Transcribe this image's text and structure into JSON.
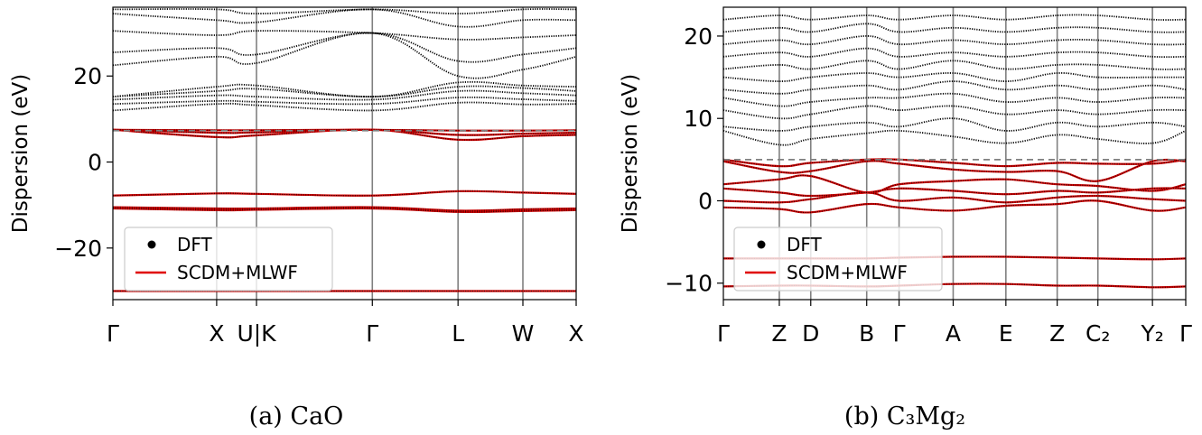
{
  "chart_data": [
    {
      "type": "line",
      "ylabel": "Dispersion (eV)",
      "ylim": [
        -32,
        36
      ],
      "yticks": [
        -20,
        0,
        20
      ],
      "ytick_labels": [
        "−20",
        "0",
        "20"
      ],
      "kpath": [
        "Γ",
        "X",
        "U|K",
        "Γ",
        "L",
        "W",
        "X"
      ],
      "kpos": [
        0,
        0.224,
        0.31,
        0.56,
        0.745,
        0.885,
        1.0
      ],
      "fermi_level": 7.3,
      "legend": [
        "DFT",
        "SCDM+MLWF"
      ],
      "legend_position": "lower-left",
      "caption": "(a) CaO",
      "wannier_bands": [
        {
          "x": [
            0,
            0.224,
            0.31,
            0.56,
            0.745,
            0.885,
            1.0
          ],
          "y": [
            7.5,
            5.8,
            6.2,
            7.5,
            5.2,
            6.0,
            6.3
          ]
        },
        {
          "x": [
            0,
            0.224,
            0.31,
            0.56,
            0.745,
            0.885,
            1.0
          ],
          "y": [
            7.5,
            6.8,
            6.9,
            7.5,
            6.3,
            6.6,
            6.8
          ]
        },
        {
          "x": [
            0,
            0.224,
            0.31,
            0.56,
            0.745,
            0.885,
            1.0
          ],
          "y": [
            7.5,
            7.4,
            7.4,
            7.5,
            7.3,
            7.3,
            7.4
          ]
        },
        {
          "x": [
            0,
            0.224,
            0.31,
            0.56,
            0.745,
            0.885,
            1.0
          ],
          "y": [
            -7.8,
            -7.3,
            -7.4,
            -7.8,
            -6.8,
            -7.1,
            -7.4
          ]
        },
        {
          "x": [
            0,
            0.224,
            0.31,
            0.56,
            0.745,
            0.885,
            1.0
          ],
          "y": [
            -10.5,
            -10.8,
            -10.8,
            -10.5,
            -11.3,
            -11.0,
            -10.8
          ]
        },
        {
          "x": [
            0,
            0.224,
            0.31,
            0.56,
            0.745,
            0.885,
            1.0
          ],
          "y": [
            -10.8,
            -11.2,
            -11.1,
            -10.8,
            -11.6,
            -11.4,
            -11.2
          ]
        },
        {
          "x": [
            0,
            0.224,
            0.31,
            0.56,
            0.745,
            0.885,
            1.0
          ],
          "y": [
            -30.0,
            -30.0,
            -30.0,
            -30.0,
            -30.0,
            -30.0,
            -30.0
          ]
        }
      ],
      "dft_bands": [
        {
          "x": [
            0,
            0.224,
            0.31,
            0.56,
            0.745,
            0.885,
            1.0
          ],
          "y": [
            12.0,
            13.5,
            13.2,
            12.0,
            13.8,
            13.4,
            13.5
          ]
        },
        {
          "x": [
            0,
            0.224,
            0.31,
            0.56,
            0.745,
            0.885,
            1.0
          ],
          "y": [
            13.5,
            14.2,
            14.0,
            13.5,
            15.0,
            14.6,
            14.2
          ]
        },
        {
          "x": [
            0,
            0.224,
            0.31,
            0.56,
            0.745,
            0.885,
            1.0
          ],
          "y": [
            14.5,
            15.5,
            15.2,
            14.5,
            16.5,
            16.0,
            15.5
          ]
        },
        {
          "x": [
            0,
            0.224,
            0.31,
            0.56,
            0.745,
            0.885,
            1.0
          ],
          "y": [
            15.2,
            16.5,
            17.0,
            15.2,
            17.5,
            17.2,
            16.5
          ]
        },
        {
          "x": [
            0,
            0.224,
            0.31,
            0.56,
            0.745,
            0.885,
            1.0
          ],
          "y": [
            15.2,
            17.5,
            17.8,
            15.2,
            18.5,
            17.8,
            17.5
          ]
        },
        {
          "x": [
            0,
            0.224,
            0.31,
            0.56,
            0.745,
            0.885,
            1.0
          ],
          "y": [
            22.5,
            24.5,
            23.0,
            30.0,
            20.0,
            21.5,
            24.5
          ]
        },
        {
          "x": [
            0,
            0.224,
            0.31,
            0.56,
            0.745,
            0.885,
            1.0
          ],
          "y": [
            25.5,
            26.5,
            25.0,
            30.0,
            23.5,
            25.0,
            26.5
          ]
        },
        {
          "x": [
            0,
            0.224,
            0.31,
            0.56,
            0.745,
            0.885,
            1.0
          ],
          "y": [
            30.5,
            29.5,
            30.5,
            30.0,
            28.5,
            29.0,
            29.5
          ]
        },
        {
          "x": [
            0,
            0.224,
            0.31,
            0.56,
            0.745,
            0.885,
            1.0
          ],
          "y": [
            34.5,
            33.0,
            32.5,
            35.5,
            31.5,
            33.0,
            33.0
          ]
        },
        {
          "x": [
            0,
            0.224,
            0.31,
            0.56,
            0.745,
            0.885,
            1.0
          ],
          "y": [
            35.5,
            35.5,
            34.5,
            35.5,
            34.5,
            35.5,
            35.5
          ]
        }
      ]
    },
    {
      "type": "line",
      "ylabel": "Dispersion (eV)",
      "ylim": [
        -12,
        23.5
      ],
      "yticks": [
        -10,
        0,
        10,
        20
      ],
      "ytick_labels": [
        "−10",
        "0",
        "10",
        "20"
      ],
      "kpath": [
        "Γ",
        "Z",
        "D",
        "B",
        "Γ",
        "A",
        "E",
        "Z",
        "C₂",
        "Y₂",
        "Γ"
      ],
      "kpos": [
        0,
        0.121,
        0.189,
        0.31,
        0.38,
        0.497,
        0.611,
        0.722,
        0.81,
        0.928,
        1.0
      ],
      "fermi_level": 5.0,
      "legend": [
        "DFT",
        "SCDM+MLWF"
      ],
      "legend_position": "lower-left",
      "caption": "(b) C₃Mg₂",
      "wannier_bands": [
        {
          "x": [
            0,
            0.121,
            0.189,
            0.31,
            0.38,
            0.497,
            0.611,
            0.722,
            0.81,
            0.928,
            1.0
          ],
          "y": [
            5.0,
            4.2,
            4.6,
            5.0,
            5.0,
            4.6,
            4.2,
            4.6,
            4.5,
            4.5,
            5.0
          ]
        },
        {
          "x": [
            0,
            0.121,
            0.189,
            0.31,
            0.38,
            0.497,
            0.611,
            0.722,
            0.81,
            0.928,
            1.0
          ],
          "y": [
            4.8,
            3.5,
            3.6,
            4.8,
            4.5,
            3.8,
            3.5,
            3.6,
            2.4,
            4.8,
            4.8
          ]
        },
        {
          "x": [
            0,
            0.121,
            0.189,
            0.31,
            0.38,
            0.497,
            0.611,
            0.722,
            0.81,
            0.928,
            1.0
          ],
          "y": [
            2.0,
            2.6,
            3.0,
            1.0,
            2.0,
            2.4,
            2.6,
            2.0,
            1.8,
            1.2,
            2.0
          ]
        },
        {
          "x": [
            0,
            0.121,
            0.189,
            0.31,
            0.38,
            0.497,
            0.611,
            0.722,
            0.81,
            0.928,
            1.0
          ],
          "y": [
            1.5,
            1.0,
            0.6,
            1.0,
            1.5,
            1.2,
            0.8,
            1.2,
            1.0,
            1.5,
            1.5
          ]
        },
        {
          "x": [
            0,
            0.121,
            0.189,
            0.31,
            0.38,
            0.497,
            0.611,
            0.722,
            0.81,
            0.928,
            1.0
          ],
          "y": [
            0.0,
            -0.2,
            0.2,
            1.0,
            0.0,
            0.4,
            -0.2,
            0.4,
            0.6,
            0.2,
            0.0
          ]
        },
        {
          "x": [
            0,
            0.121,
            0.189,
            0.31,
            0.38,
            0.497,
            0.611,
            0.722,
            0.81,
            0.928,
            1.0
          ],
          "y": [
            -0.8,
            -1.0,
            -1.4,
            -0.4,
            -0.8,
            -1.2,
            -0.6,
            -0.4,
            0.0,
            -1.2,
            -0.8
          ]
        },
        {
          "x": [
            0,
            0.121,
            0.189,
            0.31,
            0.38,
            0.497,
            0.611,
            0.722,
            0.81,
            0.928,
            1.0
          ],
          "y": [
            -7.0,
            -7.0,
            -7.0,
            -7.0,
            -6.9,
            -6.8,
            -6.8,
            -6.9,
            -7.0,
            -7.1,
            -7.0
          ]
        },
        {
          "x": [
            0,
            0.121,
            0.189,
            0.31,
            0.38,
            0.497,
            0.611,
            0.722,
            0.81,
            0.928,
            1.0
          ],
          "y": [
            -10.4,
            -10.3,
            -10.3,
            -10.4,
            -10.3,
            -10.1,
            -10.1,
            -10.3,
            -10.3,
            -10.5,
            -10.4
          ]
        }
      ],
      "dft_bands": [
        {
          "x": [
            0,
            0.121,
            0.189,
            0.31,
            0.38,
            0.497,
            0.611,
            0.722,
            0.81,
            0.928,
            1.0
          ],
          "y": [
            8.5,
            6.8,
            7.5,
            8.2,
            8.5,
            7.8,
            7.0,
            8.0,
            7.5,
            7.0,
            8.5
          ]
        },
        {
          "x": [
            0,
            0.121,
            0.189,
            0.31,
            0.38,
            0.497,
            0.611,
            0.722,
            0.81,
            0.928,
            1.0
          ],
          "y": [
            9.0,
            8.5,
            9.0,
            9.5,
            9.0,
            10.0,
            8.5,
            9.5,
            9.0,
            9.5,
            9.0
          ]
        },
        {
          "x": [
            0,
            0.121,
            0.189,
            0.31,
            0.38,
            0.497,
            0.611,
            0.722,
            0.81,
            0.928,
            1.0
          ],
          "y": [
            11.0,
            10.0,
            10.5,
            11.5,
            11.0,
            11.5,
            10.5,
            11.0,
            10.5,
            11.0,
            11.0
          ]
        },
        {
          "x": [
            0,
            0.121,
            0.189,
            0.31,
            0.38,
            0.497,
            0.611,
            0.722,
            0.81,
            0.928,
            1.0
          ],
          "y": [
            12.5,
            11.5,
            12.0,
            12.5,
            12.5,
            13.0,
            12.0,
            12.5,
            12.0,
            12.5,
            12.5
          ]
        },
        {
          "x": [
            0,
            0.121,
            0.189,
            0.31,
            0.38,
            0.497,
            0.611,
            0.722,
            0.81,
            0.928,
            1.0
          ],
          "y": [
            13.5,
            13.0,
            13.5,
            14.0,
            13.5,
            14.5,
            13.5,
            14.0,
            13.5,
            14.0,
            13.5
          ]
        },
        {
          "x": [
            0,
            0.121,
            0.189,
            0.31,
            0.38,
            0.497,
            0.611,
            0.722,
            0.81,
            0.928,
            1.0
          ],
          "y": [
            15.0,
            14.5,
            15.0,
            15.5,
            15.0,
            15.5,
            14.5,
            15.5,
            15.0,
            15.0,
            15.0
          ]
        },
        {
          "x": [
            0,
            0.121,
            0.189,
            0.31,
            0.38,
            0.497,
            0.611,
            0.722,
            0.81,
            0.928,
            1.0
          ],
          "y": [
            16.0,
            16.5,
            16.0,
            17.0,
            16.0,
            17.0,
            16.0,
            16.5,
            16.5,
            16.0,
            16.0
          ]
        },
        {
          "x": [
            0,
            0.121,
            0.189,
            0.31,
            0.38,
            0.497,
            0.611,
            0.722,
            0.81,
            0.928,
            1.0
          ],
          "y": [
            17.5,
            18.0,
            17.5,
            18.5,
            17.5,
            18.0,
            17.5,
            18.0,
            18.0,
            17.5,
            17.5
          ]
        },
        {
          "x": [
            0,
            0.121,
            0.189,
            0.31,
            0.38,
            0.497,
            0.611,
            0.722,
            0.81,
            0.928,
            1.0
          ],
          "y": [
            19.0,
            19.5,
            19.0,
            20.0,
            19.0,
            19.5,
            19.0,
            19.5,
            19.5,
            19.0,
            19.0
          ]
        },
        {
          "x": [
            0,
            0.121,
            0.189,
            0.31,
            0.38,
            0.497,
            0.611,
            0.722,
            0.81,
            0.928,
            1.0
          ],
          "y": [
            20.5,
            21.0,
            20.5,
            21.5,
            20.5,
            21.0,
            20.5,
            21.0,
            21.0,
            20.5,
            20.5
          ]
        },
        {
          "x": [
            0,
            0.121,
            0.189,
            0.31,
            0.38,
            0.497,
            0.611,
            0.722,
            0.81,
            0.928,
            1.0
          ],
          "y": [
            22.0,
            22.5,
            22.0,
            22.5,
            22.0,
            22.5,
            22.0,
            22.5,
            22.5,
            22.0,
            22.0
          ]
        }
      ]
    }
  ]
}
